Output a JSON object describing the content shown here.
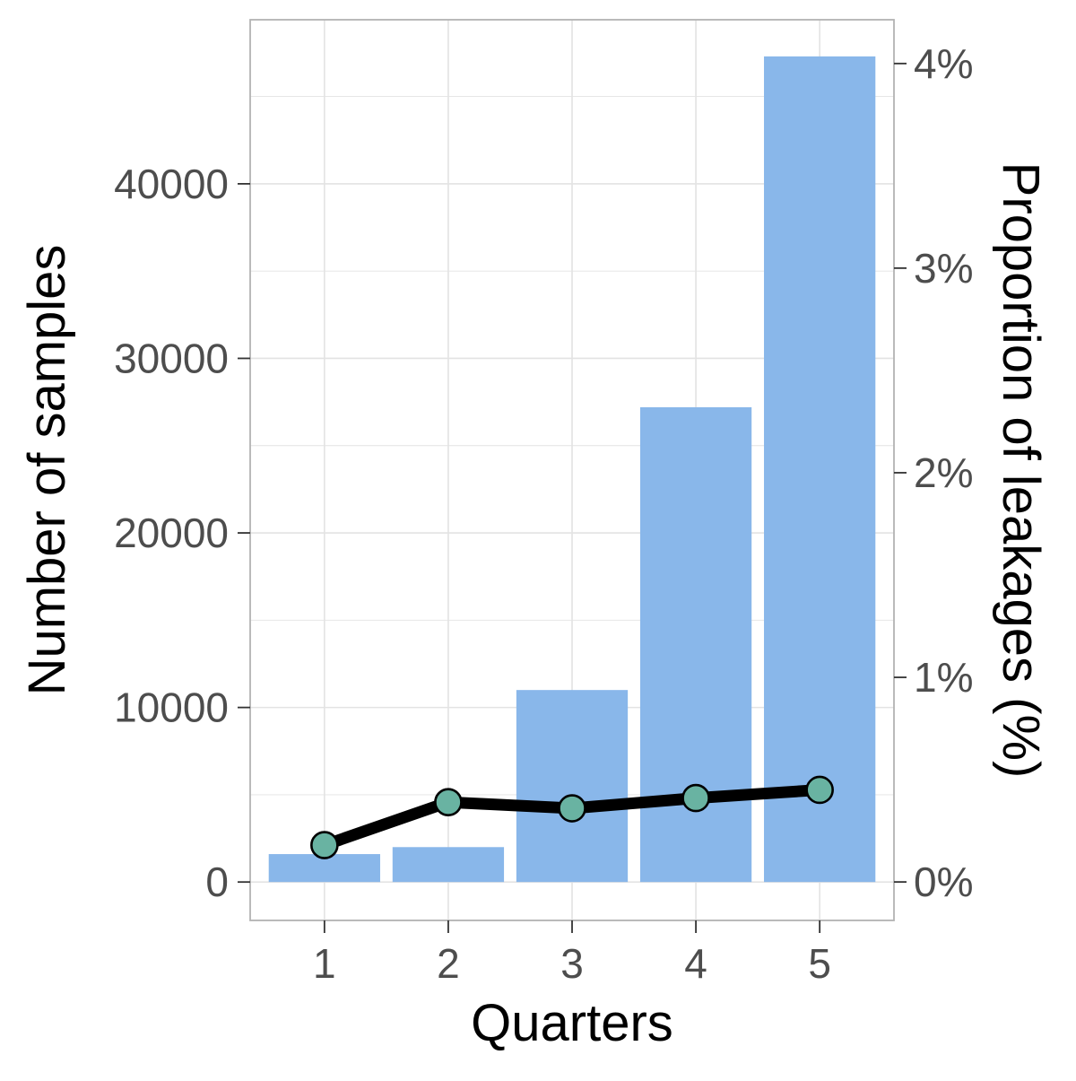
{
  "chart_data": {
    "type": "bar",
    "categories": [
      "1",
      "2",
      "3",
      "4",
      "5"
    ],
    "series": [
      {
        "type": "bar",
        "axis": "left",
        "values": [
          1600,
          2000,
          11000,
          27200,
          47300
        ]
      },
      {
        "type": "line",
        "axis": "right",
        "values": [
          0.18,
          0.39,
          0.36,
          0.41,
          0.45
        ]
      }
    ],
    "xlabel": "Quarters",
    "ylabel": "Number of samples",
    "y2label": "Proportion of leakages (%)",
    "ylim": [
      -2200,
      49400
    ],
    "y2lim": [
      -0.188,
      4.214
    ],
    "yticks": [
      0,
      10000,
      20000,
      30000,
      40000
    ],
    "y2ticks": [
      0,
      1,
      2,
      3,
      4
    ],
    "y2tick_labels": [
      "0%",
      "1%",
      "2%",
      "3%",
      "4%"
    ],
    "grid": true,
    "legend": "none",
    "colors": {
      "bar": "#89B7EA",
      "line": "#000000",
      "marker_fill": "#69B3A2",
      "marker_stroke": "#000000",
      "grid": "#E3E3E3",
      "panel_border": "#B3B3B3",
      "tick_text": "#4D4D4D"
    }
  }
}
